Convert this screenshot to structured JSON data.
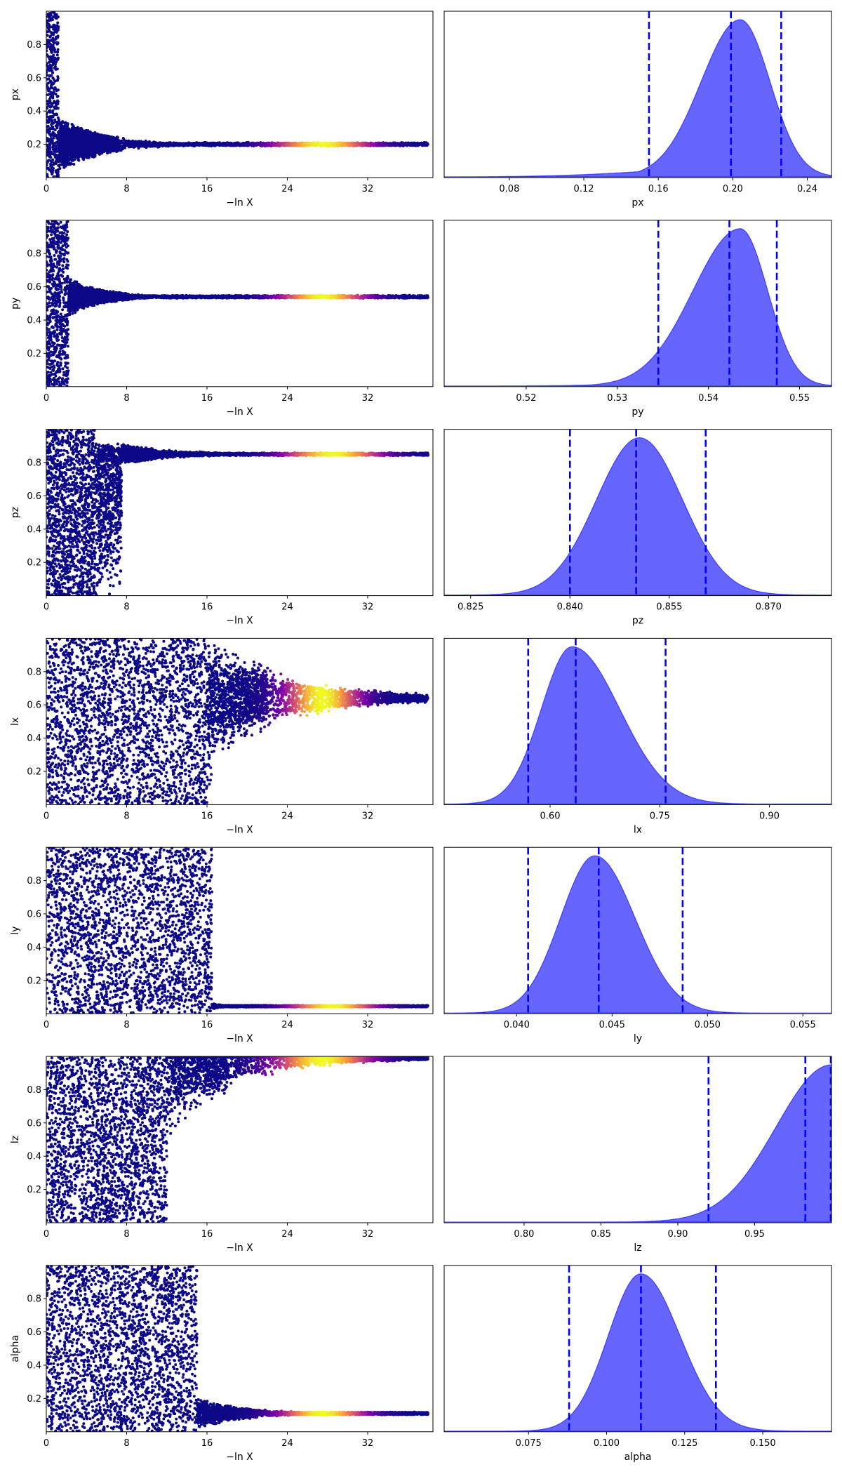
{
  "chart_data": [
    {
      "type": "scatter",
      "panel": "trace",
      "param": "px",
      "xlabel": "−ln X",
      "ylabel": "px",
      "xlim": [
        0,
        38.5
      ],
      "ylim": [
        0,
        1
      ],
      "xticks": [
        0,
        8,
        16,
        24,
        32
      ],
      "yticks": [
        0.2,
        0.4,
        0.6,
        0.8
      ],
      "ytick_labels": [
        "0.2",
        "0.4",
        "0.6",
        "0.8"
      ],
      "trace": {
        "converge": 0.2,
        "narrow": 1.2,
        "decay": 0.22,
        "halfwidth": 0.17,
        "tail": 0.012,
        "tail_start": 0,
        "hot_x": 27.5,
        "hot_w": 4.5,
        "x_max": 38.0
      },
      "colors": {
        "cold": "#0d0887",
        "hot": "#f0f921"
      }
    },
    {
      "type": "area",
      "panel": "posterior",
      "param": "px",
      "xlabel": "px",
      "xlim": [
        0.045,
        0.253
      ],
      "xticks": [
        0.08,
        0.12,
        0.16,
        0.2,
        0.24
      ],
      "xtick_labels": [
        "0.08",
        "0.12",
        "0.16",
        "0.20",
        "0.24"
      ],
      "density": {
        "mode": 0.204,
        "sigma_left": 0.021,
        "sigma_right": 0.016,
        "left_tail_weight": 0.06,
        "left_tail_sigma": 0.05
      },
      "quantiles": [
        0.155,
        0.199,
        0.226
      ],
      "colors": {
        "fill": "#5555ff",
        "line": "#0000ff"
      }
    },
    {
      "type": "scatter",
      "panel": "trace",
      "param": "py",
      "xlabel": "−ln X",
      "ylabel": "py",
      "xlim": [
        0,
        38.5
      ],
      "ylim": [
        0,
        1
      ],
      "xticks": [
        0,
        8,
        16,
        24,
        32
      ],
      "yticks": [
        0.2,
        0.4,
        0.6,
        0.8
      ],
      "ytick_labels": [
        "0.2",
        "0.4",
        "0.6",
        "0.8"
      ],
      "trace": {
        "converge": 0.54,
        "narrow": 2.2,
        "decay": 0.3,
        "halfwidth": 0.12,
        "tail": 0.01,
        "tail_start": 0,
        "hot_x": 27.5,
        "hot_w": 4.0,
        "x_max": 38.0
      },
      "colors": {
        "cold": "#0d0887",
        "hot": "#f0f921"
      }
    },
    {
      "type": "area",
      "panel": "posterior",
      "param": "py",
      "xlabel": "py",
      "xlim": [
        0.511,
        0.5535
      ],
      "xticks": [
        0.52,
        0.53,
        0.54,
        0.55
      ],
      "xtick_labels": [
        "0.52",
        "0.53",
        "0.54",
        "0.55"
      ],
      "density": {
        "mode": 0.5435,
        "sigma_left": 0.0052,
        "sigma_right": 0.003,
        "left_tail_weight": 0.05,
        "left_tail_sigma": 0.008
      },
      "quantiles": [
        0.5345,
        0.5423,
        0.5475
      ],
      "colors": {
        "fill": "#5555ff",
        "line": "#0000ff"
      }
    },
    {
      "type": "scatter",
      "panel": "trace",
      "param": "pz",
      "xlabel": "−ln X",
      "ylabel": "pz",
      "xlim": [
        0,
        38.5
      ],
      "ylim": [
        0,
        1
      ],
      "xticks": [
        0,
        8,
        16,
        24,
        32
      ],
      "yticks": [
        0.2,
        0.4,
        0.6,
        0.8
      ],
      "ytick_labels": [
        "0.2",
        "0.4",
        "0.6",
        "0.8"
      ],
      "trace": {
        "converge": 0.85,
        "narrow": 5.0,
        "decay": 0.18,
        "halfwidth": 0.1,
        "tail": 0.01,
        "tail_start": 0,
        "floor_until": 7.5,
        "hot_x": 28.5,
        "hot_w": 4.5,
        "x_max": 38.0
      },
      "colors": {
        "cold": "#0d0887",
        "hot": "#f0f921"
      }
    },
    {
      "type": "area",
      "panel": "posterior",
      "param": "pz",
      "xlabel": "pz",
      "xlim": [
        0.821,
        0.8795
      ],
      "xticks": [
        0.825,
        0.84,
        0.855,
        0.87
      ],
      "xtick_labels": [
        "0.825",
        "0.840",
        "0.855",
        "0.870"
      ],
      "density": {
        "mode": 0.8505,
        "sigma_left": 0.0065,
        "sigma_right": 0.0065,
        "left_tail_weight": 0,
        "left_tail_sigma": 0.01
      },
      "quantiles": [
        0.84,
        0.85,
        0.8605
      ],
      "colors": {
        "fill": "#5555ff",
        "line": "#0000ff"
      }
    },
    {
      "type": "scatter",
      "panel": "trace",
      "param": "lx",
      "xlabel": "−ln X",
      "ylabel": "lx",
      "xlim": [
        0,
        38.5
      ],
      "ylim": [
        0,
        1
      ],
      "xticks": [
        0,
        8,
        16,
        24,
        32
      ],
      "yticks": [
        0.2,
        0.4,
        0.6,
        0.8
      ],
      "ytick_labels": [
        "0.2",
        "0.4",
        "0.6",
        "0.8"
      ],
      "trace": {
        "converge": 0.64,
        "narrow": 16.0,
        "decay": 0.12,
        "halfwidth": 0.4,
        "tail": 0.02,
        "tail_start": 0,
        "floor_until": 16.5,
        "hot_x": 27.5,
        "hot_w": 3.5,
        "x_max": 38.0
      },
      "colors": {
        "cold": "#0d0887",
        "hot": "#f0f921"
      }
    },
    {
      "type": "area",
      "panel": "posterior",
      "param": "lx",
      "xlabel": "lx",
      "xlim": [
        0.455,
        0.985
      ],
      "xticks": [
        0.6,
        0.75,
        0.9
      ],
      "xtick_labels": [
        "0.60",
        "0.75",
        "0.90"
      ],
      "density": {
        "mode": 0.63,
        "sigma_left": 0.042,
        "sigma_right": 0.065,
        "left_tail_weight": 0,
        "left_tail_sigma": 0.05
      },
      "quantiles": [
        0.57,
        0.635,
        0.758
      ],
      "colors": {
        "fill": "#5555ff",
        "line": "#0000ff"
      }
    },
    {
      "type": "scatter",
      "panel": "trace",
      "param": "ly",
      "xlabel": "−ln X",
      "ylabel": "ly",
      "xlim": [
        0,
        38.5
      ],
      "ylim": [
        0,
        1
      ],
      "xticks": [
        0,
        8,
        16,
        24,
        32
      ],
      "yticks": [
        0.2,
        0.4,
        0.6,
        0.8
      ],
      "ytick_labels": [
        "0.2",
        "0.4",
        "0.6",
        "0.8"
      ],
      "trace": {
        "converge": 0.045,
        "narrow": 16.5,
        "decay": 0.9,
        "halfwidth": 0.02,
        "tail": 0.006,
        "tail_start": 16.5,
        "hot_x": 28.5,
        "hot_w": 4.0,
        "x_max": 38.0
      },
      "colors": {
        "cold": "#0d0887",
        "hot": "#f0f921"
      }
    },
    {
      "type": "area",
      "panel": "posterior",
      "param": "ly",
      "xlabel": "ly",
      "xlim": [
        0.0362,
        0.0565
      ],
      "xticks": [
        0.04,
        0.045,
        0.05,
        0.055
      ],
      "xtick_labels": [
        "0.040",
        "0.045",
        "0.050",
        "0.055"
      ],
      "density": {
        "mode": 0.0441,
        "sigma_left": 0.0018,
        "sigma_right": 0.0021,
        "left_tail_weight": 0,
        "left_tail_sigma": 0.002
      },
      "quantiles": [
        0.0406,
        0.0443,
        0.0487
      ],
      "colors": {
        "fill": "#5555ff",
        "line": "#0000ff"
      }
    },
    {
      "type": "scatter",
      "panel": "trace",
      "param": "lz",
      "xlabel": "−ln X",
      "ylabel": "lz",
      "xlim": [
        0,
        38.5
      ],
      "ylim": [
        0,
        1
      ],
      "xticks": [
        0,
        8,
        16,
        24,
        32
      ],
      "yticks": [
        0.2,
        0.4,
        0.6,
        0.8
      ],
      "ytick_labels": [
        "0.2",
        "0.4",
        "0.6",
        "0.8"
      ],
      "trace": {
        "converge": 0.99,
        "narrow": 12.0,
        "decay": 0.14,
        "halfwidth": 0.5,
        "tail": 0.01,
        "tail_start": 0,
        "hot_x": 27.5,
        "hot_w": 4.5,
        "x_max": 38.0
      },
      "colors": {
        "cold": "#0d0887",
        "hot": "#f0f921"
      }
    },
    {
      "type": "area",
      "panel": "posterior",
      "param": "lz",
      "xlabel": "lz",
      "xlim": [
        0.748,
        1.0
      ],
      "xticks": [
        0.8,
        0.85,
        0.9,
        0.95
      ],
      "xtick_labels": [
        "0.80",
        "0.85",
        "0.90",
        "0.95"
      ],
      "density": {
        "mode": 1.0,
        "sigma_left": 0.036,
        "sigma_right": 0.01,
        "left_tail_weight": 0,
        "left_tail_sigma": 0.05
      },
      "quantiles": [
        0.92,
        0.983,
        1.0
      ],
      "colors": {
        "fill": "#5555ff",
        "line": "#0000ff"
      }
    },
    {
      "type": "scatter",
      "panel": "trace",
      "param": "alpha",
      "xlabel": "−ln X",
      "ylabel": "alpha",
      "xlim": [
        0,
        38.5
      ],
      "ylim": [
        0,
        1
      ],
      "xticks": [
        0,
        8,
        16,
        24,
        32
      ],
      "yticks": [
        0.2,
        0.4,
        0.6,
        0.8
      ],
      "ytick_labels": [
        "0.2",
        "0.4",
        "0.6",
        "0.8"
      ],
      "trace": {
        "converge": 0.11,
        "narrow": 15.0,
        "decay": 0.22,
        "halfwidth": 0.1,
        "tail": 0.01,
        "tail_start": 0,
        "hot_x": 27.5,
        "hot_w": 4.0,
        "x_max": 38.0
      },
      "colors": {
        "cold": "#0d0887",
        "hot": "#f0f921"
      }
    },
    {
      "type": "area",
      "panel": "posterior",
      "param": "alpha",
      "xlabel": "alpha",
      "xlim": [
        0.048,
        0.172
      ],
      "xticks": [
        0.075,
        0.1,
        0.125,
        0.15
      ],
      "xtick_labels": [
        "0.075",
        "0.100",
        "0.125",
        "0.150"
      ],
      "density": {
        "mode": 0.111,
        "sigma_left": 0.0105,
        "sigma_right": 0.0125,
        "left_tail_weight": 0,
        "left_tail_sigma": 0.02
      },
      "quantiles": [
        0.088,
        0.111,
        0.135
      ],
      "colors": {
        "fill": "#5555ff",
        "line": "#0000ff"
      }
    }
  ]
}
